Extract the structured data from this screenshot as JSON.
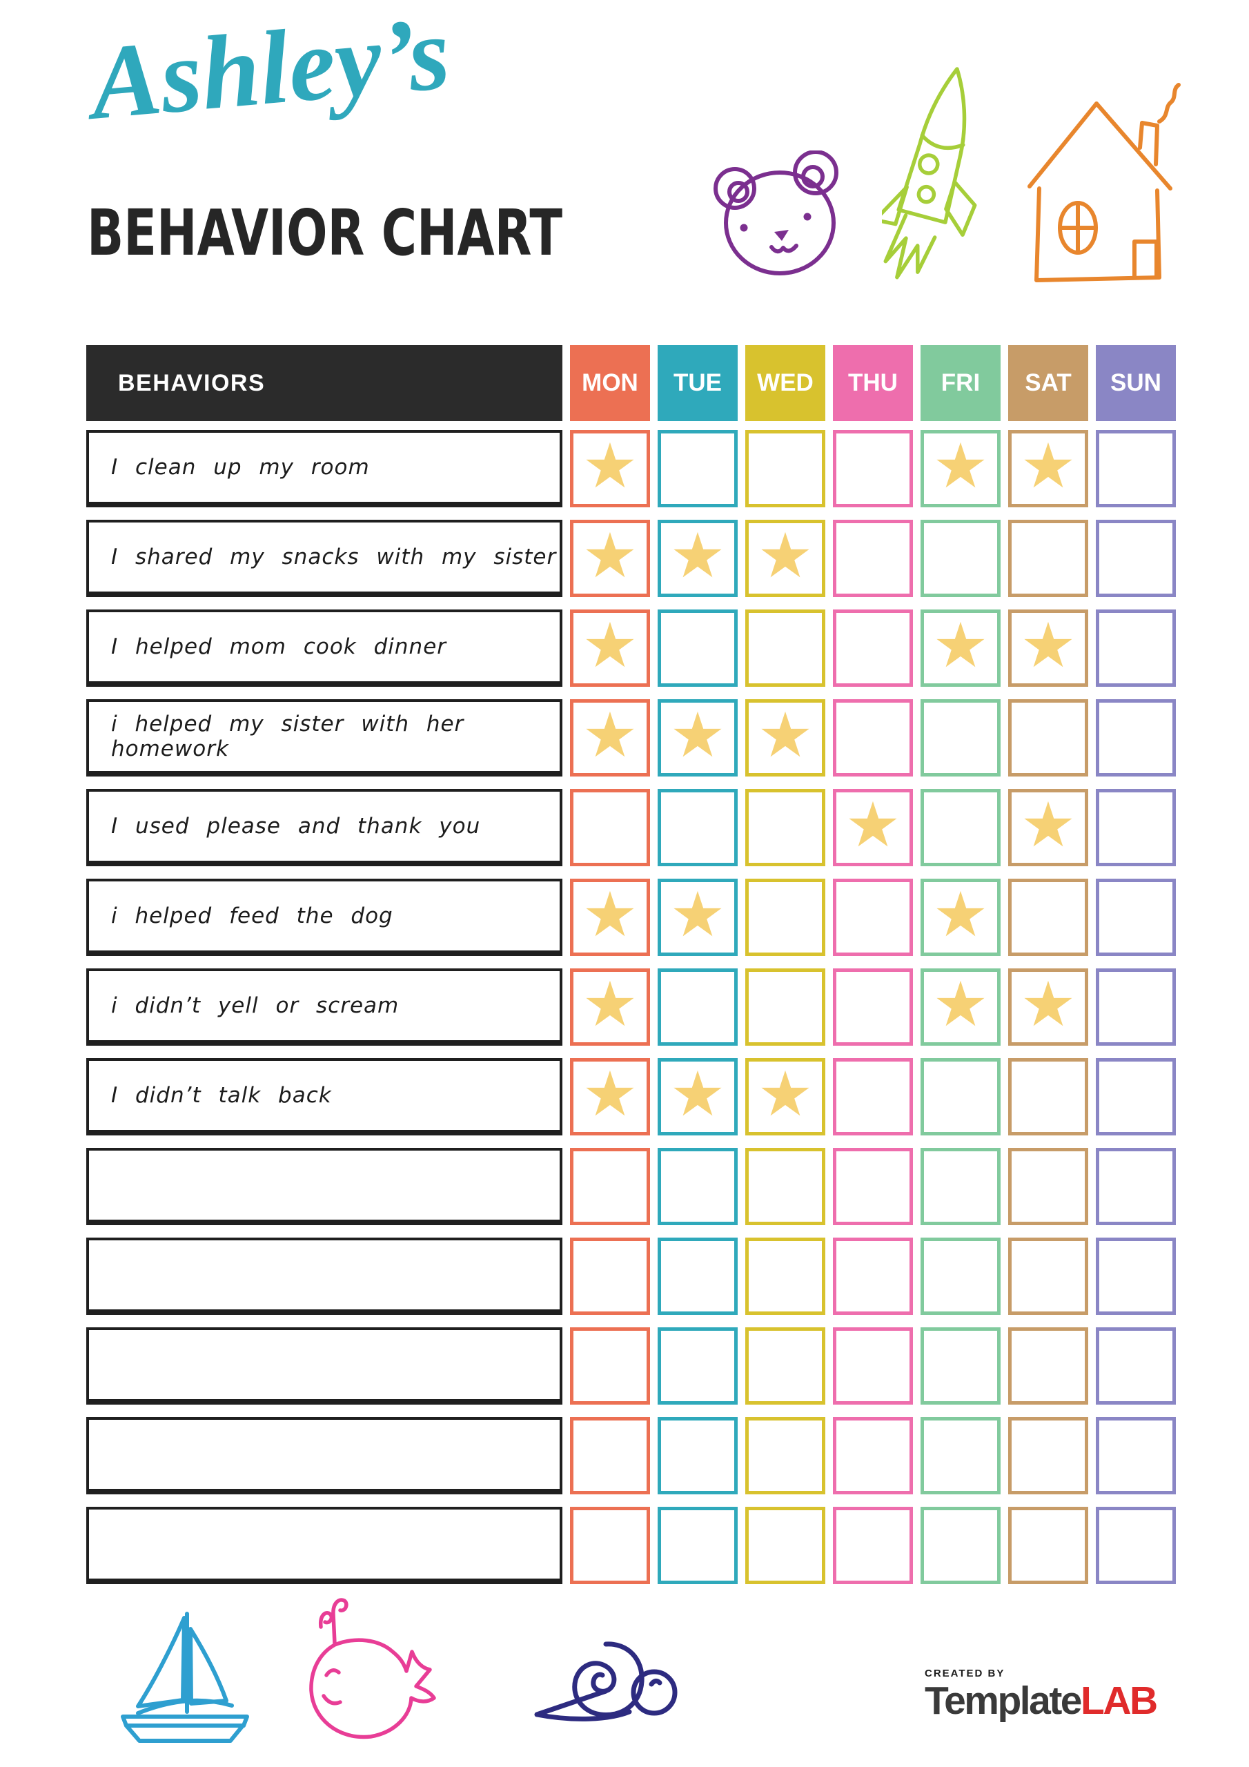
{
  "header": {
    "title": "Ashley’s",
    "subtitle": "BEHAVIOR CHART"
  },
  "icons": {
    "bear": {
      "name": "bear-icon",
      "color": "#7B2F8F"
    },
    "rocket": {
      "name": "rocket-icon",
      "color": "#A6CE39"
    },
    "house": {
      "name": "house-icon",
      "color": "#E8862D"
    },
    "sailboat": {
      "name": "sailboat-icon",
      "color": "#2E9FD0"
    },
    "whale": {
      "name": "whale-icon",
      "color": "#E83D96"
    },
    "snail": {
      "name": "snail-icon",
      "color": "#2D2B80"
    }
  },
  "table": {
    "behaviors_header": "BEHAVIORS",
    "star_glyph": "★",
    "days": [
      {
        "label": "MON",
        "color": "#EC7053"
      },
      {
        "label": "TUE",
        "color": "#2FA9BB"
      },
      {
        "label": "WED",
        "color": "#D8C22E"
      },
      {
        "label": "THU",
        "color": "#EE6EAD"
      },
      {
        "label": "FRI",
        "color": "#81CA9D"
      },
      {
        "label": "SAT",
        "color": "#C79C68"
      },
      {
        "label": "SUN",
        "color": "#8A86C5"
      }
    ],
    "rows": [
      {
        "behavior": "I clean up my room",
        "stars": [
          0,
          4,
          5
        ]
      },
      {
        "behavior": "I shared my snacks with my sister",
        "stars": [
          0,
          1,
          2
        ]
      },
      {
        "behavior": "I helped mom cook dinner",
        "stars": [
          0,
          4,
          5
        ]
      },
      {
        "behavior": "i helped my sister with her homework",
        "stars": [
          0,
          1,
          2
        ]
      },
      {
        "behavior": "I used please and thank you",
        "stars": [
          3,
          5
        ]
      },
      {
        "behavior": "i helped feed the dog",
        "stars": [
          0,
          1,
          4
        ]
      },
      {
        "behavior": "i didn’t yell or scream",
        "stars": [
          0,
          4,
          5
        ]
      },
      {
        "behavior": "I didn’t talk back",
        "stars": [
          0,
          1,
          2
        ]
      },
      {
        "behavior": "",
        "stars": []
      },
      {
        "behavior": "",
        "stars": []
      },
      {
        "behavior": "",
        "stars": []
      },
      {
        "behavior": "",
        "stars": []
      },
      {
        "behavior": "",
        "stars": []
      }
    ]
  },
  "footer": {
    "created_by": "CREATED BY",
    "brand_template": "Template",
    "brand_lab": "LAB"
  },
  "colors": {
    "page_bg": "#FFFFFF",
    "title_script": "#2FA8BC",
    "title_main": "#262626",
    "table_header_bg": "#2B2B2B",
    "table_header_text": "#FFFFFF",
    "row_border": "#1F1F1F",
    "star": "#F6D175",
    "brand_template": "#3A3A3A",
    "brand_lab": "#E02B2B"
  }
}
